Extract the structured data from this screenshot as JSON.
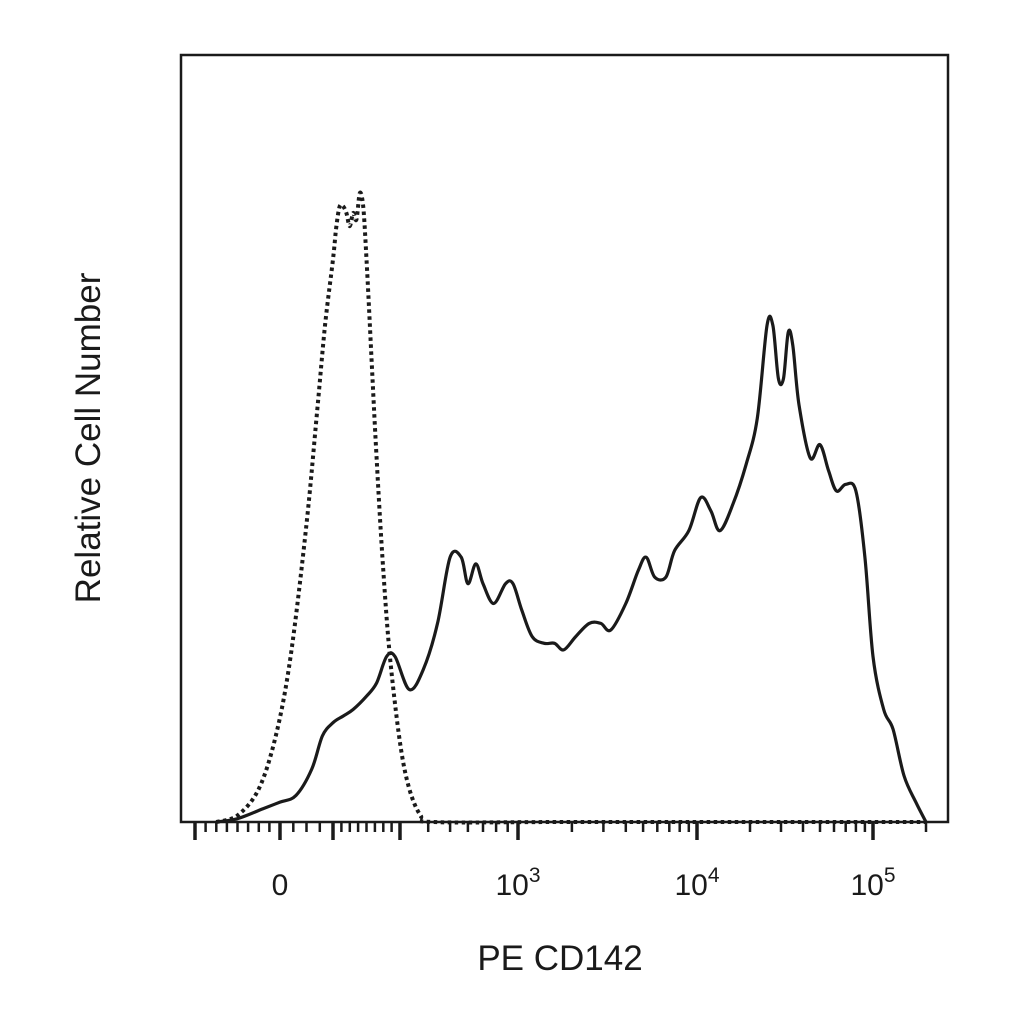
{
  "chart_data": {
    "type": "line",
    "title": "",
    "xlabel": "PE CD142",
    "ylabel": "Relative Cell Number",
    "x_scale": "biexponential",
    "xlim": [
      -200,
      200000
    ],
    "ylim": [
      0,
      100
    ],
    "grid": false,
    "x_tick_labels": [
      {
        "value": 0,
        "base": "0",
        "exp": ""
      },
      {
        "value": 1000,
        "base": "10",
        "exp": "3"
      },
      {
        "value": 10000,
        "base": "10",
        "exp": "4"
      },
      {
        "value": 100000,
        "base": "10",
        "exp": "5"
      }
    ],
    "series": [
      {
        "style": "dotted",
        "color": "#1a1a1a",
        "points": [
          [
            -150,
            0
          ],
          [
            -100,
            1
          ],
          [
            -50,
            5
          ],
          [
            -10,
            13
          ],
          [
            20,
            25
          ],
          [
            50,
            45
          ],
          [
            70,
            62
          ],
          [
            85,
            75
          ],
          [
            100,
            85
          ],
          [
            110,
            90
          ],
          [
            120,
            93
          ],
          [
            130,
            93
          ],
          [
            140,
            92
          ],
          [
            150,
            90
          ],
          [
            160,
            92
          ],
          [
            170,
            91
          ],
          [
            180,
            95
          ],
          [
            190,
            93
          ],
          [
            200,
            85
          ],
          [
            215,
            70
          ],
          [
            230,
            55
          ],
          [
            250,
            38
          ],
          [
            270,
            25
          ],
          [
            300,
            12
          ],
          [
            330,
            5
          ],
          [
            370,
            1
          ],
          [
            420,
            0
          ],
          [
            2000,
            0
          ],
          [
            100000,
            0
          ],
          [
            200000,
            0
          ]
        ]
      },
      {
        "style": "solid",
        "color": "#1a1a1a",
        "points": [
          [
            -150,
            0
          ],
          [
            -100,
            0.5
          ],
          [
            -40,
            2
          ],
          [
            0,
            3
          ],
          [
            30,
            4
          ],
          [
            60,
            8
          ],
          [
            80,
            13
          ],
          [
            100,
            15
          ],
          [
            130,
            16
          ],
          [
            160,
            17
          ],
          [
            200,
            19
          ],
          [
            230,
            21
          ],
          [
            260,
            25
          ],
          [
            285,
            25
          ],
          [
            330,
            20
          ],
          [
            380,
            23
          ],
          [
            440,
            30
          ],
          [
            500,
            40
          ],
          [
            560,
            40
          ],
          [
            600,
            36
          ],
          [
            650,
            39
          ],
          [
            700,
            36
          ],
          [
            780,
            33
          ],
          [
            880,
            36
          ],
          [
            950,
            36
          ],
          [
            1050,
            32
          ],
          [
            1200,
            28
          ],
          [
            1400,
            27
          ],
          [
            1600,
            27
          ],
          [
            1800,
            26
          ],
          [
            2100,
            28
          ],
          [
            2500,
            30
          ],
          [
            2900,
            30
          ],
          [
            3300,
            29
          ],
          [
            4000,
            33
          ],
          [
            4700,
            38
          ],
          [
            5200,
            40
          ],
          [
            5800,
            37
          ],
          [
            6700,
            37
          ],
          [
            7500,
            41
          ],
          [
            9000,
            44
          ],
          [
            10500,
            49
          ],
          [
            12000,
            47
          ],
          [
            13500,
            44
          ],
          [
            16000,
            48
          ],
          [
            19000,
            54
          ],
          [
            22000,
            61
          ],
          [
            25000,
            75
          ],
          [
            27000,
            75
          ],
          [
            29000,
            67
          ],
          [
            31000,
            67
          ],
          [
            33000,
            74
          ],
          [
            35000,
            72
          ],
          [
            38000,
            63
          ],
          [
            44000,
            55
          ],
          [
            50000,
            57
          ],
          [
            56000,
            53
          ],
          [
            62000,
            50
          ],
          [
            70000,
            51
          ],
          [
            80000,
            50
          ],
          [
            90000,
            40
          ],
          [
            100000,
            25
          ],
          [
            115000,
            17
          ],
          [
            130000,
            14
          ],
          [
            150000,
            7
          ],
          [
            175000,
            3
          ],
          [
            200000,
            0
          ]
        ]
      }
    ]
  }
}
